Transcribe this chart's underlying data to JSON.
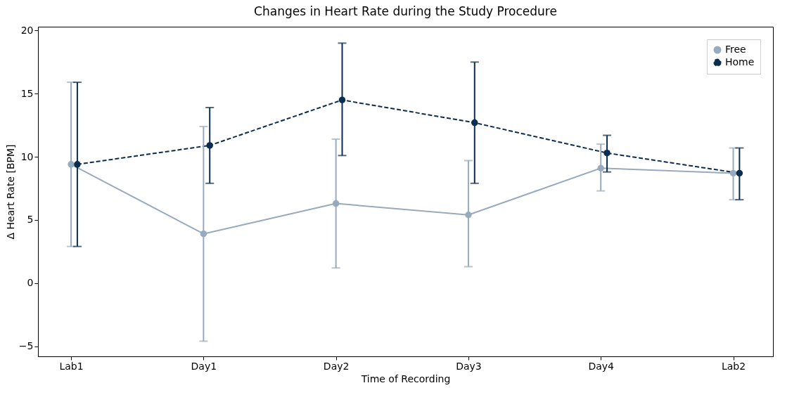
{
  "chart_data": {
    "type": "line",
    "title": "Changes in Heart Rate during the Study Procedure",
    "xlabel": "Time of Recording",
    "ylabel": "Δ Heart Rate [BPM]",
    "categories": [
      "Lab1",
      "Day1",
      "Day2",
      "Day3",
      "Day4",
      "Lab2"
    ],
    "series": [
      {
        "name": "Free",
        "color": "#98aabd",
        "line_style": "solid",
        "values": [
          9.4,
          3.9,
          6.3,
          5.4,
          9.1,
          8.7
        ],
        "errors": [
          [
            2.9,
            15.9
          ],
          [
            -4.6,
            12.4
          ],
          [
            1.2,
            11.4
          ],
          [
            1.3,
            9.7
          ],
          [
            7.3,
            11.0
          ],
          [
            6.6,
            10.7
          ]
        ]
      },
      {
        "name": "Home",
        "color": "#0a2d50",
        "line_style": "dashed",
        "values": [
          9.4,
          10.9,
          14.5,
          12.7,
          10.3,
          8.7
        ],
        "errors": [
          [
            2.9,
            15.9
          ],
          [
            7.9,
            13.9
          ],
          [
            10.1,
            19.0
          ],
          [
            7.9,
            17.5
          ],
          [
            8.8,
            11.7
          ],
          [
            6.6,
            10.7
          ]
        ]
      }
    ],
    "ylim": [
      -5.8,
      20.3
    ],
    "yticks": [
      {
        "value": -5,
        "label": "−5"
      },
      0,
      5,
      10,
      15,
      20
    ],
    "marker": "circle",
    "legend": "top right",
    "grid": false
  }
}
